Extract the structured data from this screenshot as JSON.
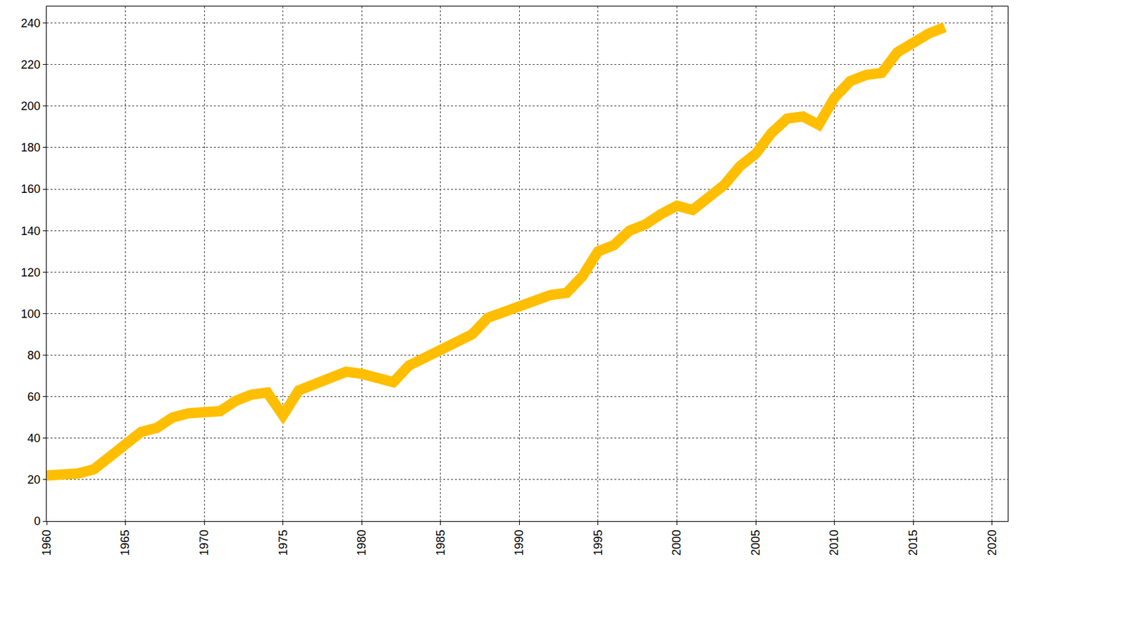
{
  "chart_data": {
    "type": "line",
    "x": [
      1960,
      1961,
      1962,
      1963,
      1964,
      1965,
      1966,
      1967,
      1968,
      1969,
      1970,
      1971,
      1972,
      1973,
      1974,
      1975,
      1976,
      1977,
      1978,
      1979,
      1980,
      1981,
      1982,
      1983,
      1984,
      1985,
      1986,
      1987,
      1988,
      1989,
      1990,
      1991,
      1992,
      1993,
      1994,
      1995,
      1996,
      1997,
      1998,
      1999,
      2000,
      2001,
      2002,
      2003,
      2004,
      2005,
      2006,
      2007,
      2008,
      2009,
      2010,
      2011,
      2012,
      2013,
      2014,
      2015,
      2016,
      2017
    ],
    "values": [
      22,
      22,
      23,
      25,
      31,
      38,
      43,
      45,
      50,
      52,
      52,
      53,
      58,
      61,
      62,
      51,
      63,
      66,
      69,
      72,
      71,
      69,
      67,
      75,
      79,
      82,
      86,
      90,
      98,
      101,
      104,
      107,
      109,
      110,
      118,
      130,
      133,
      140,
      143,
      148,
      152,
      150,
      156,
      162,
      171,
      177,
      187,
      194,
      195,
      191,
      204,
      212,
      215,
      216,
      226,
      231,
      235,
      238
    ],
    "color": "#ffbf00",
    "line_style": "solid",
    "xlim": [
      1960,
      2021
    ],
    "ylim": [
      0,
      248
    ],
    "xticks": [
      1960,
      1965,
      1970,
      1975,
      1980,
      1985,
      1990,
      1995,
      2000,
      2005,
      2010,
      2015,
      2020
    ],
    "yticks": [
      0,
      20,
      40,
      60,
      80,
      100,
      120,
      140,
      160,
      180,
      200,
      220,
      240
    ],
    "grid": true
  }
}
